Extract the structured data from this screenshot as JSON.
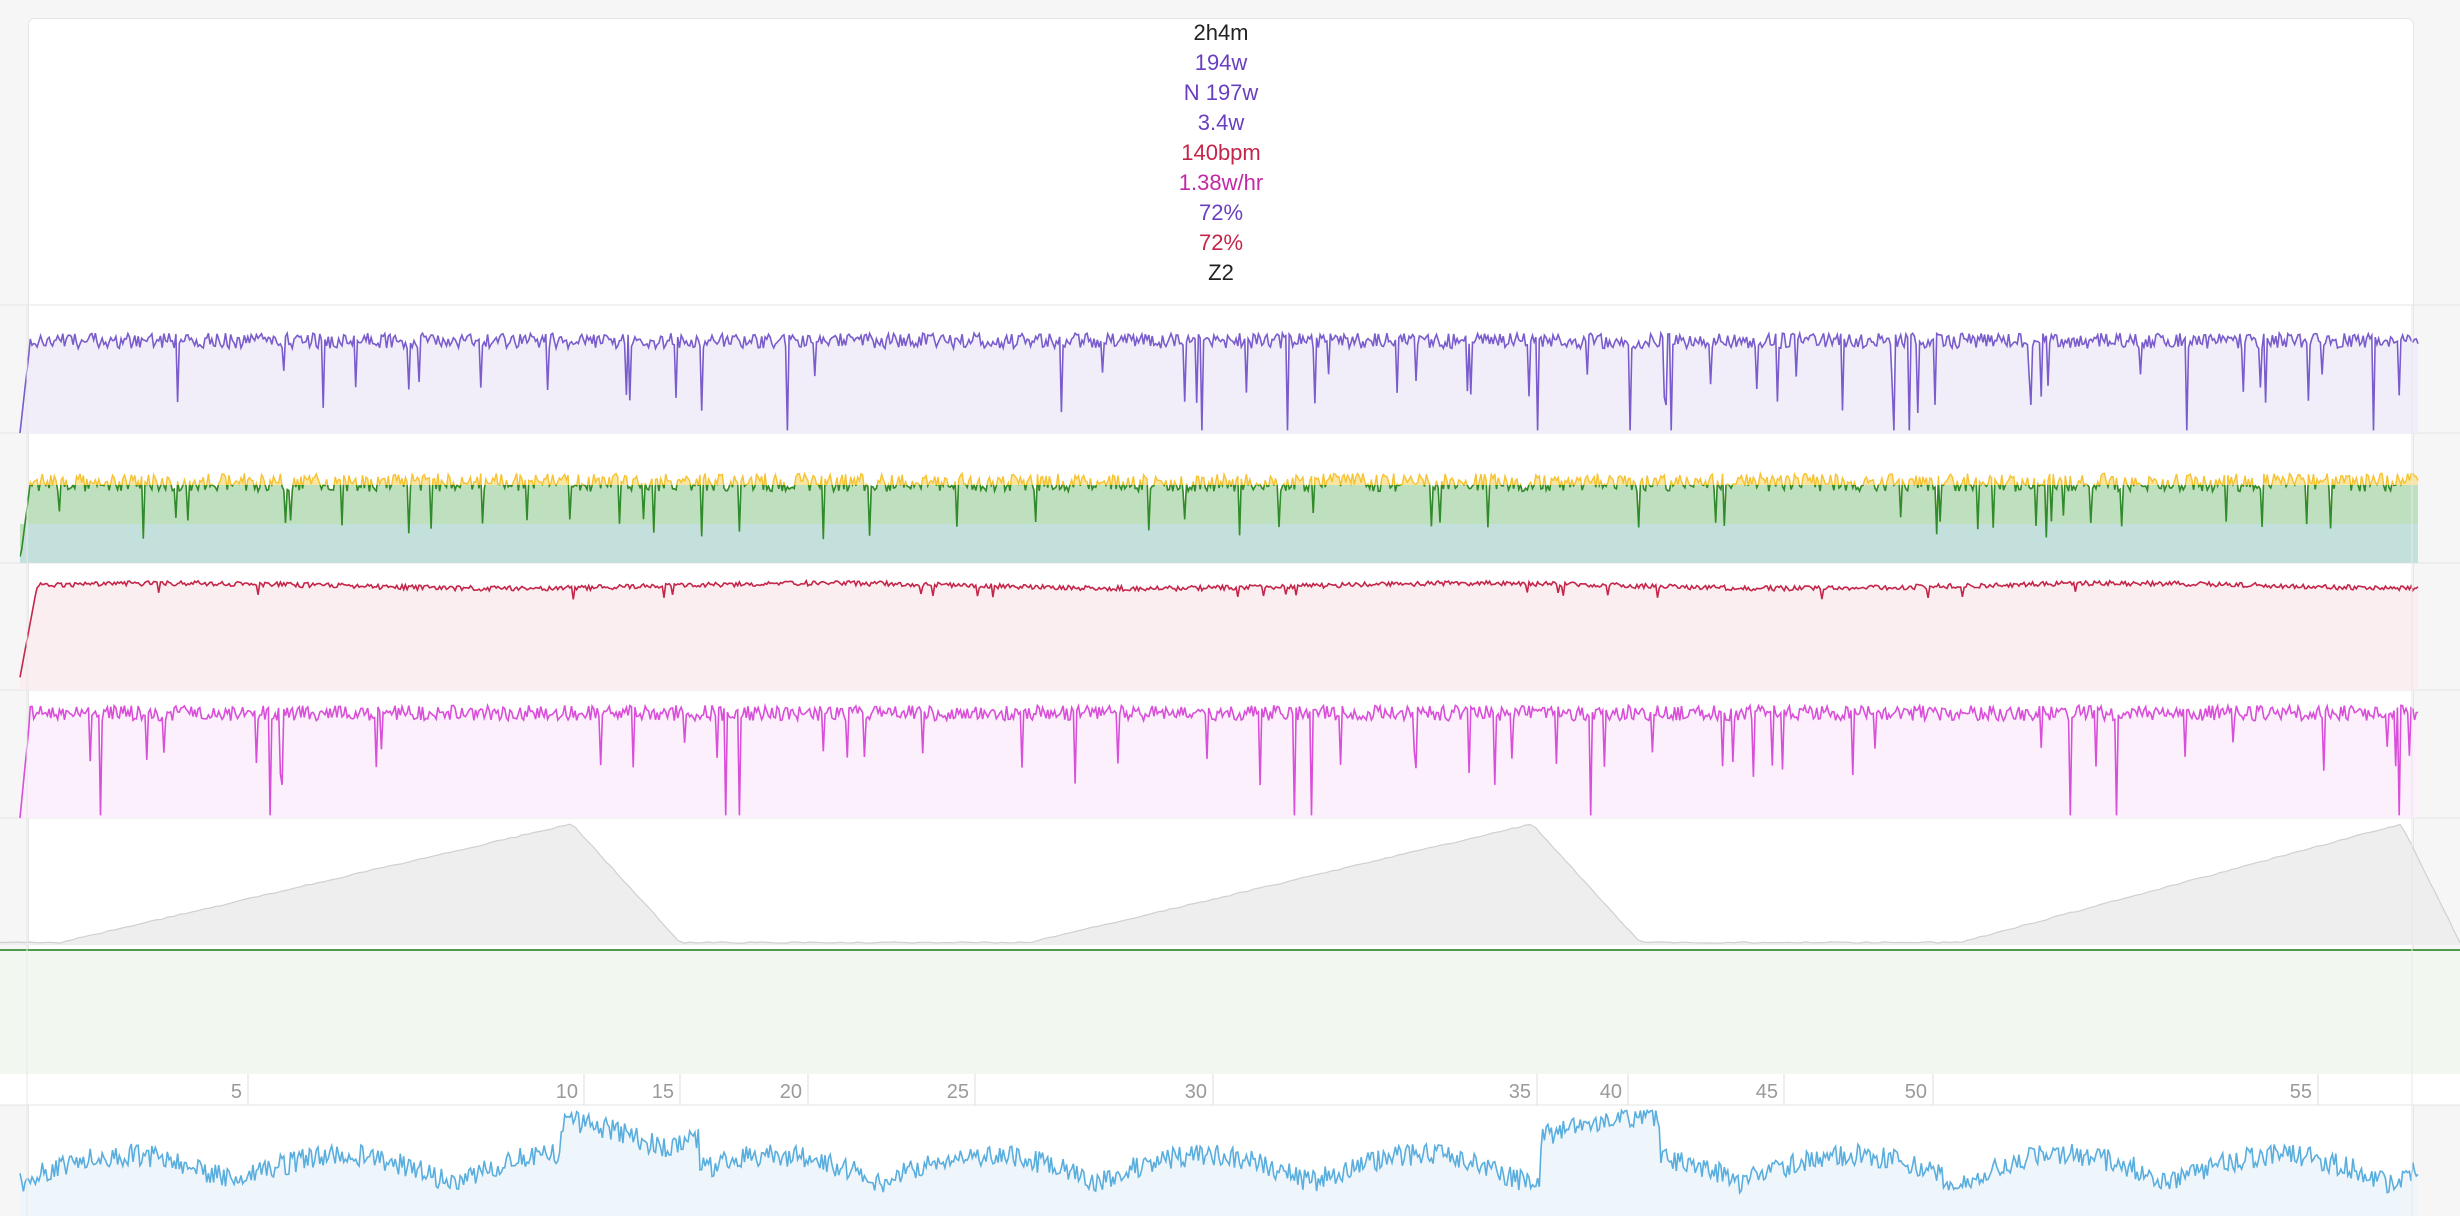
{
  "stats": {
    "duration": "2h4m",
    "avg_power": "194w",
    "norm_power": "N 197w",
    "power_delta": "3.4w",
    "heart_rate": "140bpm",
    "drift": "1.38w/hr",
    "pct_power": "72%",
    "pct_hr": "72%",
    "zone": "Z2"
  },
  "colors": {
    "duration": "#222222",
    "power": "#6a3fbf",
    "heart_rate": "#c4264a",
    "drift": "#c229a6",
    "zone": "#222222",
    "power_line": "#7a5ccc",
    "power_fill": "#f1eef9",
    "balance_line": "#2e8b2e",
    "balance_fill": "#bfe0bf",
    "balance_hi": "#f6c232",
    "balance_hi_fill": "#fbe6a0",
    "balance_base": "#c4e0dc",
    "hr_line": "#c4264a",
    "hr_fill": "#fbeef1",
    "cadence_line": "#d94fd9",
    "cadence_fill": "#fdf0fd",
    "altitude_fill": "#eeeeee",
    "altitude_line": "#d0d0d0",
    "flat_line": "#4f9a4f",
    "flat_fill": "#f2f7f0",
    "bottom_line": "#5aaede",
    "bottom_fill": "#eef6fb"
  },
  "chart_data": {
    "type": "line",
    "x_axis": {
      "ticks": [
        "5",
        "10",
        "15",
        "20",
        "25",
        "30",
        "35",
        "40",
        "45",
        "50",
        "55"
      ]
    },
    "panels": [
      {
        "name": "power",
        "pattern": "noisy",
        "level": 0.72,
        "range": [
          0,
          1
        ]
      },
      {
        "name": "power balance",
        "pattern": "balance",
        "level": 0.55,
        "range": [
          0,
          1
        ]
      },
      {
        "name": "heart rate",
        "pattern": "hr",
        "level": 0.82,
        "range": [
          0,
          1
        ]
      },
      {
        "name": "cadence",
        "pattern": "cadence",
        "level": 0.82,
        "range": [
          0,
          1
        ]
      },
      {
        "name": "altitude",
        "pattern": "altitude",
        "range": [
          0,
          1
        ]
      },
      {
        "name": "flat",
        "pattern": "flat",
        "range": [
          0,
          1
        ]
      },
      {
        "name": "bottom",
        "pattern": "bottom",
        "range": [
          0,
          1
        ]
      }
    ]
  }
}
